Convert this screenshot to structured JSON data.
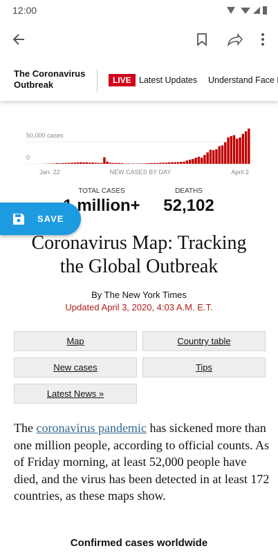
{
  "status_bar": {
    "time": "12:00"
  },
  "nav": {
    "section": "The Coronavirus Outbreak",
    "live": "LIVE",
    "links": [
      "Latest Updates",
      "Understand Face M"
    ]
  },
  "chart_data": {
    "type": "bar",
    "color": "#c00000",
    "categories": [
      "Jan. 22",
      null,
      null,
      null,
      null,
      null,
      null,
      null,
      null,
      null,
      null,
      null,
      null,
      null,
      null,
      null,
      null,
      null,
      null,
      null,
      null,
      null,
      null,
      null,
      null,
      null,
      null,
      null,
      null,
      null,
      null,
      null,
      null,
      null,
      null,
      null,
      null,
      null,
      null,
      null,
      null,
      null,
      null,
      null,
      null,
      null,
      null,
      null,
      null,
      null,
      null,
      null,
      null,
      null,
      null,
      null,
      null,
      null,
      null,
      null,
      null,
      null,
      null,
      null,
      null,
      null,
      null,
      null,
      null,
      null,
      null,
      "April 2"
    ],
    "values": [
      100,
      150,
      250,
      500,
      700,
      800,
      1700,
      1200,
      1700,
      2000,
      2100,
      2600,
      2800,
      3200,
      3700,
      3200,
      3500,
      2700,
      3000,
      2500,
      2000,
      2000,
      15000,
      5000,
      2600,
      2100,
      2000,
      1900,
      1700,
      500,
      1000,
      600,
      700,
      600,
      800,
      900,
      1200,
      1400,
      1800,
      2000,
      1900,
      2500,
      2500,
      2700,
      3500,
      3800,
      3700,
      4000,
      4500,
      4600,
      7500,
      9500,
      10900,
      13800,
      16000,
      14000,
      20000,
      26000,
      32000,
      31000,
      33000,
      40000,
      42000,
      49000,
      60000,
      63000,
      65000,
      57000,
      60000,
      68000,
      74000,
      80000
    ],
    "xlabel": "NEW CASES BY DAY",
    "ylim": [
      0,
      80000
    ],
    "yticks": [
      {
        "value": 50000,
        "label": "50,000 cases"
      },
      0
    ],
    "grid": true
  },
  "totals": [
    {
      "label": "TOTAL CASES",
      "value": "1 million+"
    },
    {
      "label": "DEATHS",
      "value": "52,102"
    }
  ],
  "save_button": "SAVE",
  "article": {
    "headline": [
      "Coronavirus Map: Tracking",
      "the Global Outbreak"
    ],
    "byline": "By The New York Times",
    "updated": "Updated April 3, 2020, 4:03 A.M. E.T.",
    "buttons": [
      "Map",
      "Country table",
      "New cases",
      "Tips",
      "Latest News »"
    ],
    "paragraph": [
      "The ",
      "coronavirus pandemic",
      " has sickened more than one million people, according to official counts. As of Friday morning, at least 52,000 people have died, and the virus has been detected in at least 172 countries, as these maps show."
    ],
    "subheading": "Confirmed cases worldwide"
  }
}
